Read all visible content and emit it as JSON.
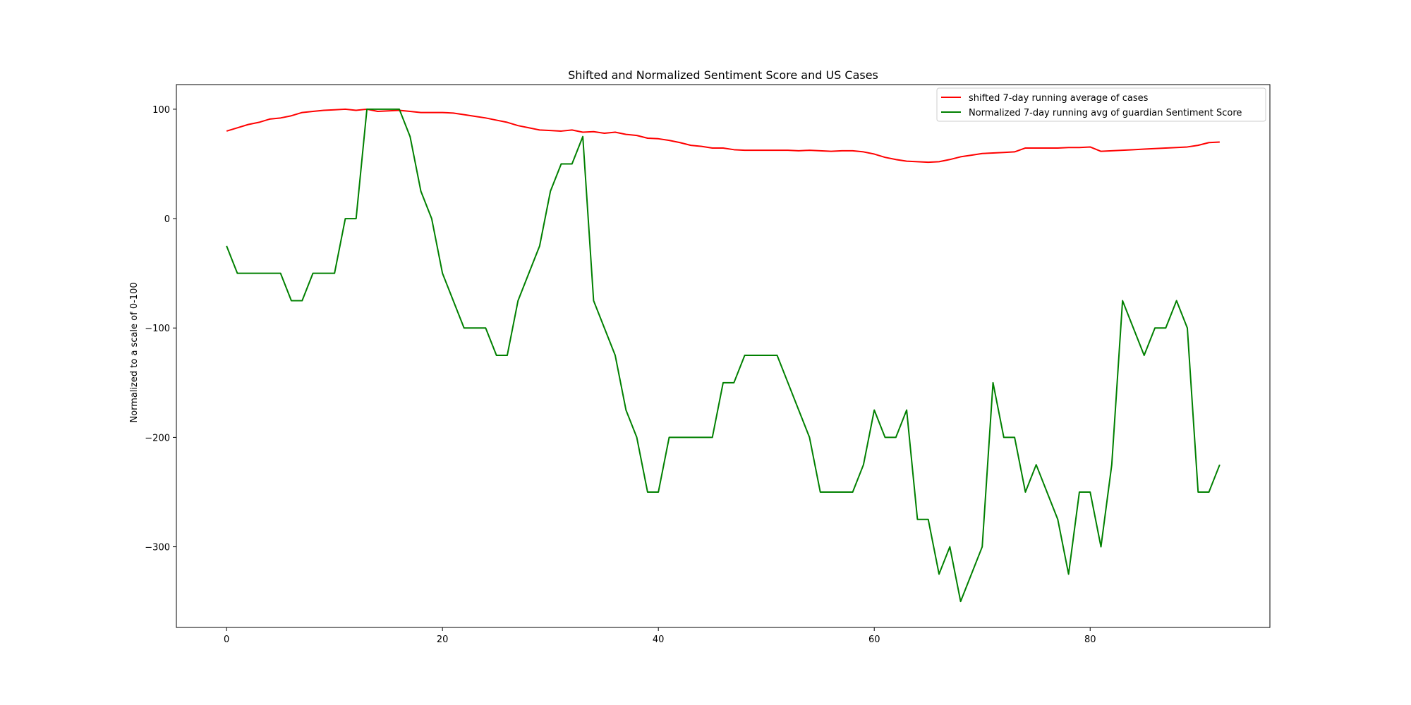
{
  "chart_data": {
    "type": "line",
    "title": "Shifted and Normalized Sentiment Score and US Cases",
    "xlabel": "",
    "ylabel": "Normalized to a scale of 0-100",
    "xlim": [
      -4.65,
      96.65
    ],
    "ylim": [
      -373.75,
      122.5
    ],
    "xticks": [
      0,
      20,
      40,
      60,
      80
    ],
    "yticks": [
      100,
      0,
      -100,
      -200,
      -300
    ],
    "tick_labels": {
      "x": [
        "0",
        "20",
        "40",
        "60",
        "80"
      ],
      "y": [
        "100",
        "0",
        "−100",
        "−200",
        "−300"
      ]
    },
    "grid": false,
    "legend_position": "upper right",
    "series": [
      {
        "name": "shifted 7-day running average of cases",
        "color": "#ff0000",
        "x": [
          0,
          1,
          2,
          3,
          4,
          5,
          6,
          7,
          8,
          9,
          10,
          11,
          12,
          13,
          14,
          15,
          16,
          17,
          18,
          19,
          20,
          21,
          22,
          23,
          24,
          25,
          26,
          27,
          28,
          29,
          30,
          31,
          32,
          33,
          34,
          35,
          36,
          37,
          38,
          39,
          40,
          41,
          42,
          43,
          44,
          45,
          46,
          47,
          48,
          49,
          50,
          51,
          52,
          53,
          54,
          55,
          56,
          57,
          58,
          59,
          60,
          61,
          62,
          63,
          64,
          65,
          66,
          67,
          68,
          69,
          70,
          71,
          72,
          73,
          74,
          75,
          76,
          77,
          78,
          79,
          80,
          81,
          82,
          83,
          84,
          85,
          86,
          87,
          88,
          89,
          90,
          91,
          92
        ],
        "values": [
          80,
          83,
          86,
          88,
          91,
          92,
          94,
          97,
          98,
          99,
          99.5,
          100,
          99,
          100,
          98,
          98.5,
          99,
          98,
          97,
          97,
          97,
          96.5,
          95,
          93.5,
          92,
          90,
          88,
          85,
          83,
          81,
          80.5,
          80,
          81,
          79,
          79.5,
          78,
          79,
          77,
          76,
          73.5,
          73,
          71.5,
          69.5,
          67,
          66,
          64.5,
          64.5,
          63,
          62.5,
          62.5,
          62.5,
          62.5,
          62.5,
          62,
          62.5,
          62,
          61.5,
          62,
          62,
          61,
          59,
          56,
          54,
          52.5,
          52,
          51.5,
          52,
          54,
          56.5,
          58,
          59.5,
          60,
          60.5,
          61,
          64.5,
          64.5,
          64.5,
          64.5,
          65,
          65,
          65.5,
          61.5,
          62,
          62.5,
          63,
          63.5,
          64,
          64.5,
          65,
          65.5,
          67,
          69.5,
          70
        ]
      },
      {
        "name": "Normalized 7-day running avg of guardian Sentiment Score",
        "color": "#008000",
        "x": [
          0,
          1,
          2,
          3,
          4,
          5,
          6,
          7,
          8,
          9,
          10,
          11,
          12,
          13,
          14,
          15,
          16,
          17,
          18,
          19,
          20,
          21,
          22,
          23,
          24,
          25,
          26,
          27,
          28,
          29,
          30,
          31,
          32,
          33,
          34,
          35,
          36,
          37,
          38,
          39,
          40,
          41,
          42,
          43,
          44,
          45,
          46,
          47,
          48,
          49,
          50,
          51,
          52,
          53,
          54,
          55,
          56,
          57,
          58,
          59,
          60,
          61,
          62,
          63,
          64,
          65,
          66,
          67,
          68,
          69,
          70,
          71,
          72,
          73,
          74,
          75,
          76,
          77,
          78,
          79,
          80,
          81,
          82,
          83,
          84,
          85,
          86,
          87,
          88,
          89,
          90,
          91,
          92
        ],
        "values": [
          -25,
          -50,
          -50,
          -50,
          -50,
          -50,
          -75,
          -75,
          -50,
          -50,
          -50,
          0,
          0,
          100,
          100,
          100,
          100,
          75,
          25,
          0,
          -50,
          -75,
          -100,
          -100,
          -100,
          -125,
          -125,
          -75,
          -50,
          -25,
          25,
          50,
          50,
          75,
          -75,
          -100,
          -125,
          -175,
          -200,
          -250,
          -250,
          -200,
          -200,
          -200,
          -200,
          -200,
          -150,
          -150,
          -125,
          -125,
          -125,
          -125,
          -150,
          -175,
          -200,
          -250,
          -250,
          -250,
          -250,
          -225,
          -175,
          -200,
          -200,
          -175,
          -275,
          -275,
          -325,
          -300,
          -350,
          -325,
          -300,
          -150,
          -200,
          -200,
          -250,
          -225,
          -250,
          -275,
          -325,
          -250,
          -250,
          -300,
          -225,
          -75,
          -100,
          -125,
          -100,
          -100,
          -75,
          -100,
          -250,
          -250,
          -225
        ]
      }
    ]
  }
}
